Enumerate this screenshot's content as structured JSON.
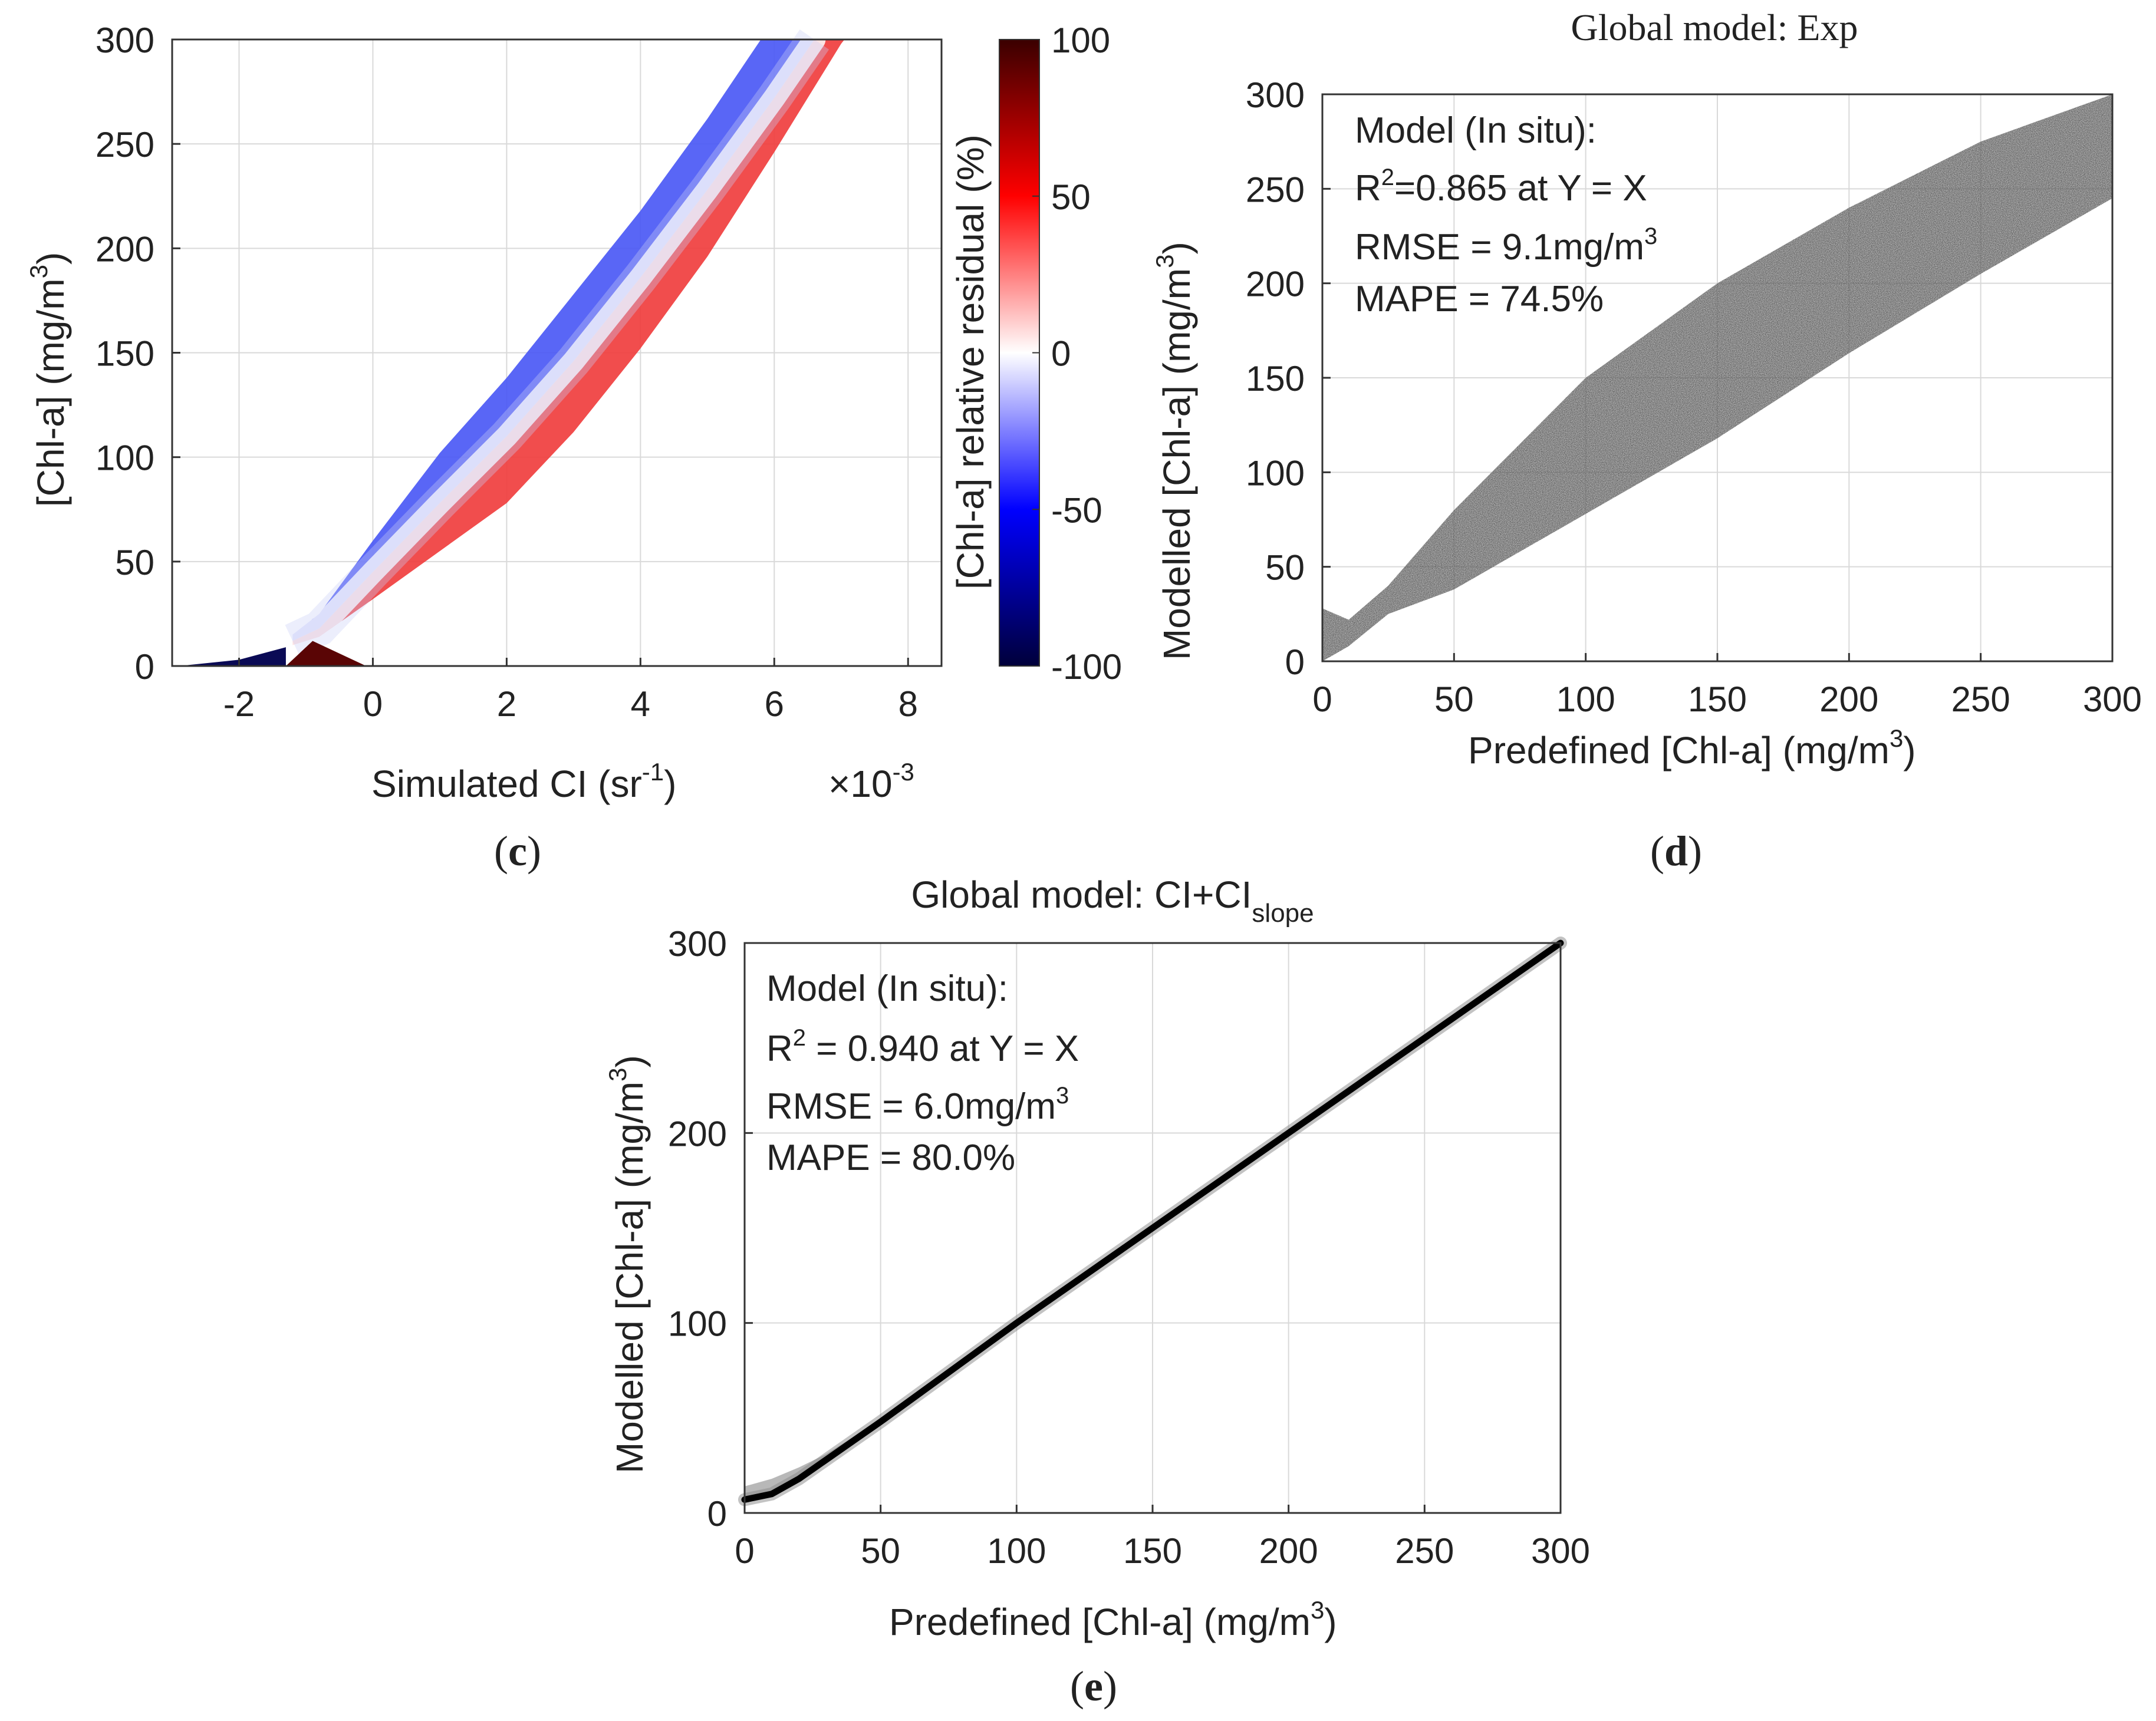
{
  "chart_data": [
    {
      "panel": "c",
      "type": "scatter",
      "title": "",
      "xlabel": "Simulated CI (sr",
      "xlabel_sup": "-1",
      "xlabel_close": ")",
      "x_multiplier_base": "×10",
      "x_multiplier_exp": "-3",
      "ylabel": "[Chl-a] (mg/m",
      "ylabel_sup": "3",
      "ylabel_close": ")",
      "xlim": [
        -3,
        8.5
      ],
      "ylim": [
        0,
        300
      ],
      "xticks": [
        -2,
        0,
        2,
        4,
        6,
        8
      ],
      "xtick_labels": [
        "-2",
        "0",
        "2",
        "4",
        "6",
        "8"
      ],
      "yticks": [
        0,
        50,
        100,
        150,
        200,
        250,
        300
      ],
      "ytick_labels": [
        "0",
        "50",
        "100",
        "150",
        "200",
        "250",
        "300"
      ],
      "grid": true,
      "colorbar": {
        "label": "[Chl-a] relative residual (%)",
        "range": [
          -100,
          100
        ],
        "tick_labels": [
          "100",
          "50",
          "0",
          "-50",
          "-100"
        ],
        "colors": [
          "#3a0000",
          "#ff0000",
          "#ffffff",
          "#0000ff",
          "#00003a"
        ]
      },
      "band_upper": [
        [
          -1.2,
          15
        ],
        [
          -0.8,
          25
        ],
        [
          0,
          60
        ],
        [
          1,
          102
        ],
        [
          2,
          138
        ],
        [
          3,
          178
        ],
        [
          4,
          218
        ],
        [
          5,
          262
        ],
        [
          5.8,
          300
        ]
      ],
      "band_middle": [
        [
          -1.2,
          12
        ],
        [
          -0.8,
          18
        ],
        [
          0,
          45
        ],
        [
          1,
          78
        ],
        [
          2,
          110
        ],
        [
          3,
          146
        ],
        [
          4,
          186
        ],
        [
          5,
          228
        ],
        [
          6,
          272
        ],
        [
          6.6,
          300
        ]
      ],
      "band_lower": [
        [
          -1.2,
          10
        ],
        [
          -0.8,
          14
        ],
        [
          0,
          32
        ],
        [
          1,
          55
        ],
        [
          2,
          78
        ],
        [
          3,
          112
        ],
        [
          4,
          152
        ],
        [
          5,
          196
        ],
        [
          6,
          246
        ],
        [
          7,
          298
        ],
        [
          7.05,
          300
        ]
      ],
      "low_tail_blue": [
        [
          -2.9,
          0
        ],
        [
          -2,
          3
        ],
        [
          -1.3,
          9
        ]
      ],
      "low_tail_red": [
        [
          -1.3,
          0
        ],
        [
          -0.9,
          12
        ],
        [
          -0.1,
          0
        ]
      ],
      "caption": "c"
    },
    {
      "panel": "d",
      "type": "scatter",
      "title": "Global model: Exp",
      "xlabel": "Predefined [Chl-a] (mg/m",
      "xlabel_sup": "3",
      "xlabel_close": ")",
      "ylabel": "Modelled [Chl-a] (mg/m",
      "ylabel_sup": "3",
      "ylabel_close": ")",
      "xlim": [
        0,
        300
      ],
      "ylim": [
        0,
        300
      ],
      "xticks": [
        0,
        50,
        100,
        150,
        200,
        250,
        300
      ],
      "xtick_labels": [
        "0",
        "50",
        "100",
        "150",
        "200",
        "250",
        "300"
      ],
      "yticks": [
        0,
        50,
        100,
        150,
        200,
        250,
        300
      ],
      "ytick_labels": [
        "0",
        "50",
        "100",
        "150",
        "200",
        "250",
        "300"
      ],
      "grid": true,
      "annotations": {
        "line1": "Model (In situ):",
        "r2_prefix": "R",
        "r2_sup": "2",
        "r2_rest": "=0.865 at Y = X",
        "rmse": "RMSE = 9.1mg/m",
        "rmse_sup": "3",
        "mape": "MAPE = 74.5%"
      },
      "band_upper": [
        [
          0,
          28
        ],
        [
          10,
          22
        ],
        [
          25,
          40
        ],
        [
          50,
          80
        ],
        [
          100,
          150
        ],
        [
          150,
          200
        ],
        [
          200,
          240
        ],
        [
          250,
          275
        ],
        [
          300,
          300
        ]
      ],
      "band_lower": [
        [
          0,
          0
        ],
        [
          10,
          8
        ],
        [
          25,
          25
        ],
        [
          50,
          38
        ],
        [
          100,
          78
        ],
        [
          150,
          118
        ],
        [
          200,
          163
        ],
        [
          250,
          205
        ],
        [
          300,
          245
        ]
      ],
      "caption": "d"
    },
    {
      "panel": "e",
      "type": "scatter",
      "title_main": "Global model: CI+CI",
      "title_sub": "slope",
      "xlabel": "Predefined [Chl-a] (mg/m",
      "xlabel_sup": "3",
      "xlabel_close": ")",
      "ylabel": "Modelled [Chl-a] (mg/m",
      "ylabel_sup": "3",
      "ylabel_close": ")",
      "xlim": [
        0,
        300
      ],
      "ylim": [
        0,
        300
      ],
      "xticks": [
        0,
        50,
        100,
        150,
        200,
        250,
        300
      ],
      "xtick_labels": [
        "0",
        "50",
        "100",
        "150",
        "200",
        "250",
        "300"
      ],
      "yticks": [
        0,
        100,
        200,
        300
      ],
      "ytick_labels": [
        "0",
        "100",
        "200",
        "300"
      ],
      "grid": true,
      "annotations": {
        "line1": "Model (In situ):",
        "r2_prefix": "R",
        "r2_sup": "2",
        "r2_rest": " = 0.940 at Y = X",
        "rmse": "RMSE = 6.0mg/m",
        "rmse_sup": "3",
        "mape": "MAPE = 80.0%"
      },
      "line_points": [
        [
          0,
          7
        ],
        [
          10,
          10
        ],
        [
          20,
          18
        ],
        [
          30,
          28
        ],
        [
          40,
          38
        ],
        [
          50,
          48
        ],
        [
          100,
          100
        ],
        [
          150,
          150
        ],
        [
          200,
          200
        ],
        [
          250,
          250
        ],
        [
          300,
          300
        ]
      ],
      "low_scatter_upper": [
        [
          0,
          14
        ],
        [
          10,
          18
        ],
        [
          20,
          24
        ],
        [
          30,
          31
        ],
        [
          40,
          40
        ]
      ],
      "caption": "e"
    }
  ]
}
